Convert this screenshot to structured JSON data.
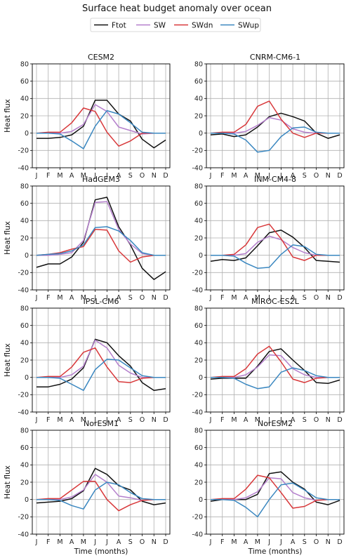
{
  "figure": {
    "title": "Surface heat budget anomaly over ocean",
    "legend": [
      "Ftot",
      "SW",
      "SWdn",
      "SWup"
    ],
    "legend_placement": "top-center"
  },
  "colors": {
    "Ftot": "#111111",
    "SW": "#b47fcc",
    "SWdn": "#d8383a",
    "SWup": "#3a87c0"
  },
  "chart_data": [
    {
      "type": "line",
      "title": "CESM2",
      "xlabel": "",
      "ylabel": "Heat flux",
      "ylim": [
        -40,
        80
      ],
      "yticks": [
        -40,
        -20,
        0,
        20,
        40,
        60,
        80
      ],
      "categories": [
        "J",
        "F",
        "M",
        "A",
        "M",
        "J",
        "J",
        "A",
        "S",
        "O",
        "N",
        "D"
      ],
      "grid": true,
      "series": [
        {
          "name": "Ftot",
          "values": [
            -6,
            -6,
            -5,
            -2,
            8,
            38,
            38,
            22,
            14,
            -7,
            -17,
            -8
          ]
        },
        {
          "name": "SW",
          "values": [
            0,
            0,
            0,
            2,
            10,
            33,
            25,
            7,
            3,
            -1,
            0,
            0
          ]
        },
        {
          "name": "SWdn",
          "values": [
            0,
            1,
            1,
            12,
            29,
            25,
            1,
            -15,
            -9,
            0,
            0,
            0
          ]
        },
        {
          "name": "SWup",
          "values": [
            0,
            0,
            -1,
            -9,
            -18,
            8,
            26,
            22,
            12,
            1,
            0,
            0
          ]
        }
      ]
    },
    {
      "type": "line",
      "title": "CNRM-CM6-1",
      "xlabel": "",
      "ylabel": "",
      "ylim": [
        -40,
        80
      ],
      "yticks": [
        -40,
        -20,
        0,
        20,
        40,
        60,
        80
      ],
      "categories": [
        "J",
        "F",
        "M",
        "A",
        "M",
        "J",
        "J",
        "A",
        "S",
        "O",
        "N",
        "D"
      ],
      "grid": true,
      "series": [
        {
          "name": "Ftot",
          "values": [
            -2,
            -1,
            -4,
            -2,
            7,
            19,
            23,
            19,
            14,
            0,
            -6,
            -2
          ]
        },
        {
          "name": "SW",
          "values": [
            0,
            0,
            0,
            2,
            9,
            18,
            15,
            5,
            1,
            0,
            0,
            0
          ]
        },
        {
          "name": "SWdn",
          "values": [
            0,
            1,
            1,
            10,
            31,
            37,
            16,
            0,
            -5,
            0,
            0,
            0
          ]
        },
        {
          "name": "SWup",
          "values": [
            0,
            0,
            -1,
            -8,
            -22,
            -20,
            -4,
            6,
            7,
            1,
            0,
            0
          ]
        }
      ]
    },
    {
      "type": "line",
      "title": "HadGEM3",
      "xlabel": "",
      "ylabel": "Heat flux",
      "ylim": [
        -40,
        80
      ],
      "yticks": [
        -40,
        -20,
        0,
        20,
        40,
        60,
        80
      ],
      "categories": [
        "J",
        "F",
        "M",
        "A",
        "M",
        "J",
        "J",
        "A",
        "S",
        "O",
        "N",
        "D"
      ],
      "grid": true,
      "series": [
        {
          "name": "Ftot",
          "values": [
            -14,
            -10,
            -10,
            -2,
            15,
            64,
            67,
            33,
            12,
            -15,
            -28,
            -19
          ]
        },
        {
          "name": "SW",
          "values": [
            0,
            0,
            1,
            3,
            17,
            61,
            62,
            30,
            13,
            2,
            0,
            0
          ]
        },
        {
          "name": "SWdn",
          "values": [
            0,
            1,
            3,
            7,
            10,
            30,
            29,
            5,
            -8,
            -2,
            0,
            0
          ]
        },
        {
          "name": "SWup",
          "values": [
            0,
            1,
            2,
            5,
            12,
            32,
            33,
            28,
            17,
            3,
            0,
            0
          ]
        }
      ]
    },
    {
      "type": "line",
      "title": "INM-CM4-8",
      "xlabel": "",
      "ylabel": "",
      "ylim": [
        -40,
        80
      ],
      "yticks": [
        -40,
        -20,
        0,
        20,
        40,
        60,
        80
      ],
      "categories": [
        "J",
        "F",
        "M",
        "A",
        "M",
        "J",
        "J",
        "A",
        "S",
        "O",
        "N",
        "D"
      ],
      "grid": true,
      "series": [
        {
          "name": "Ftot",
          "values": [
            -7,
            -5,
            -6,
            -3,
            11,
            26,
            29,
            21,
            9,
            -6,
            -7,
            -8
          ]
        },
        {
          "name": "SW",
          "values": [
            0,
            0,
            0,
            2,
            15,
            22,
            18,
            9,
            3,
            0,
            0,
            0
          ]
        },
        {
          "name": "SWdn",
          "values": [
            0,
            0,
            1,
            12,
            32,
            36,
            19,
            -2,
            -6,
            0,
            0,
            0
          ]
        },
        {
          "name": "SWup",
          "values": [
            0,
            0,
            -1,
            -9,
            -15,
            -14,
            1,
            12,
            10,
            1,
            0,
            0
          ]
        }
      ]
    },
    {
      "type": "line",
      "title": "IPSL-CM6",
      "xlabel": "",
      "ylabel": "Heat flux",
      "ylim": [
        -40,
        80
      ],
      "yticks": [
        -40,
        -20,
        0,
        20,
        40,
        60,
        80
      ],
      "categories": [
        "J",
        "F",
        "M",
        "A",
        "M",
        "J",
        "J",
        "A",
        "S",
        "O",
        "N",
        "D"
      ],
      "grid": true,
      "series": [
        {
          "name": "Ftot",
          "values": [
            -11,
            -11,
            -8,
            -2,
            11,
            44,
            40,
            25,
            13,
            -6,
            -15,
            -13
          ]
        },
        {
          "name": "SW",
          "values": [
            0,
            0,
            0,
            3,
            13,
            43,
            34,
            14,
            5,
            0,
            0,
            0
          ]
        },
        {
          "name": "SWdn",
          "values": [
            0,
            1,
            1,
            12,
            29,
            34,
            12,
            -5,
            -6,
            -1,
            0,
            0
          ]
        },
        {
          "name": "SWup",
          "values": [
            0,
            0,
            -1,
            -8,
            -15,
            9,
            21,
            20,
            11,
            2,
            0,
            0
          ]
        }
      ]
    },
    {
      "type": "line",
      "title": "MIROC-ES2L",
      "xlabel": "",
      "ylabel": "",
      "ylim": [
        -40,
        80
      ],
      "yticks": [
        -40,
        -20,
        0,
        20,
        40,
        60,
        80
      ],
      "categories": [
        "J",
        "F",
        "M",
        "A",
        "M",
        "J",
        "J",
        "A",
        "S",
        "O",
        "N",
        "D"
      ],
      "grid": true,
      "series": [
        {
          "name": "Ftot",
          "values": [
            -2,
            -1,
            -1,
            -1,
            13,
            30,
            33,
            20,
            8,
            -6,
            -7,
            -3
          ]
        },
        {
          "name": "SW",
          "values": [
            0,
            0,
            0,
            3,
            12,
            26,
            25,
            10,
            3,
            0,
            0,
            0
          ]
        },
        {
          "name": "SWdn",
          "values": [
            0,
            1,
            1,
            10,
            27,
            36,
            18,
            -2,
            -6,
            -1,
            0,
            0
          ]
        },
        {
          "name": "SWup",
          "values": [
            0,
            0,
            -1,
            -8,
            -13,
            -11,
            6,
            11,
            8,
            2,
            0,
            0
          ]
        }
      ]
    },
    {
      "type": "line",
      "title": "NorESM1",
      "xlabel": "Time (months)",
      "ylabel": "Heat flux",
      "ylim": [
        -40,
        80
      ],
      "yticks": [
        -40,
        -20,
        0,
        20,
        40,
        60,
        80
      ],
      "categories": [
        "J",
        "F",
        "M",
        "A",
        "M",
        "J",
        "J",
        "A",
        "S",
        "O",
        "N",
        "D"
      ],
      "grid": true,
      "series": [
        {
          "name": "Ftot",
          "values": [
            -4,
            -3,
            -2,
            1,
            10,
            36,
            29,
            16,
            11,
            -2,
            -6,
            -4
          ]
        },
        {
          "name": "SW",
          "values": [
            0,
            0,
            0,
            3,
            11,
            29,
            20,
            4,
            2,
            -1,
            0,
            0
          ]
        },
        {
          "name": "SWdn",
          "values": [
            0,
            1,
            1,
            11,
            21,
            21,
            0,
            -13,
            -6,
            -1,
            0,
            0
          ]
        },
        {
          "name": "SWup",
          "values": [
            0,
            0,
            -1,
            -7,
            -11,
            11,
            20,
            17,
            8,
            1,
            0,
            0
          ]
        }
      ]
    },
    {
      "type": "line",
      "title": "NorESM2",
      "xlabel": "Time (months)",
      "ylabel": "",
      "ylim": [
        -40,
        80
      ],
      "yticks": [
        -40,
        -20,
        0,
        20,
        40,
        60,
        80
      ],
      "categories": [
        "J",
        "F",
        "M",
        "A",
        "M",
        "J",
        "J",
        "A",
        "S",
        "O",
        "N",
        "D"
      ],
      "grid": true,
      "series": [
        {
          "name": "Ftot",
          "values": [
            -2,
            0,
            0,
            0,
            6,
            30,
            32,
            20,
            12,
            -3,
            -6,
            -1
          ]
        },
        {
          "name": "SW",
          "values": [
            0,
            0,
            0,
            2,
            9,
            25,
            24,
            8,
            2,
            -1,
            0,
            0
          ]
        },
        {
          "name": "SWdn",
          "values": [
            0,
            1,
            1,
            12,
            28,
            25,
            8,
            -10,
            -8,
            -1,
            0,
            0
          ]
        },
        {
          "name": "SWup",
          "values": [
            0,
            0,
            -1,
            -9,
            -20,
            0,
            17,
            19,
            11,
            2,
            0,
            0
          ]
        }
      ]
    }
  ]
}
